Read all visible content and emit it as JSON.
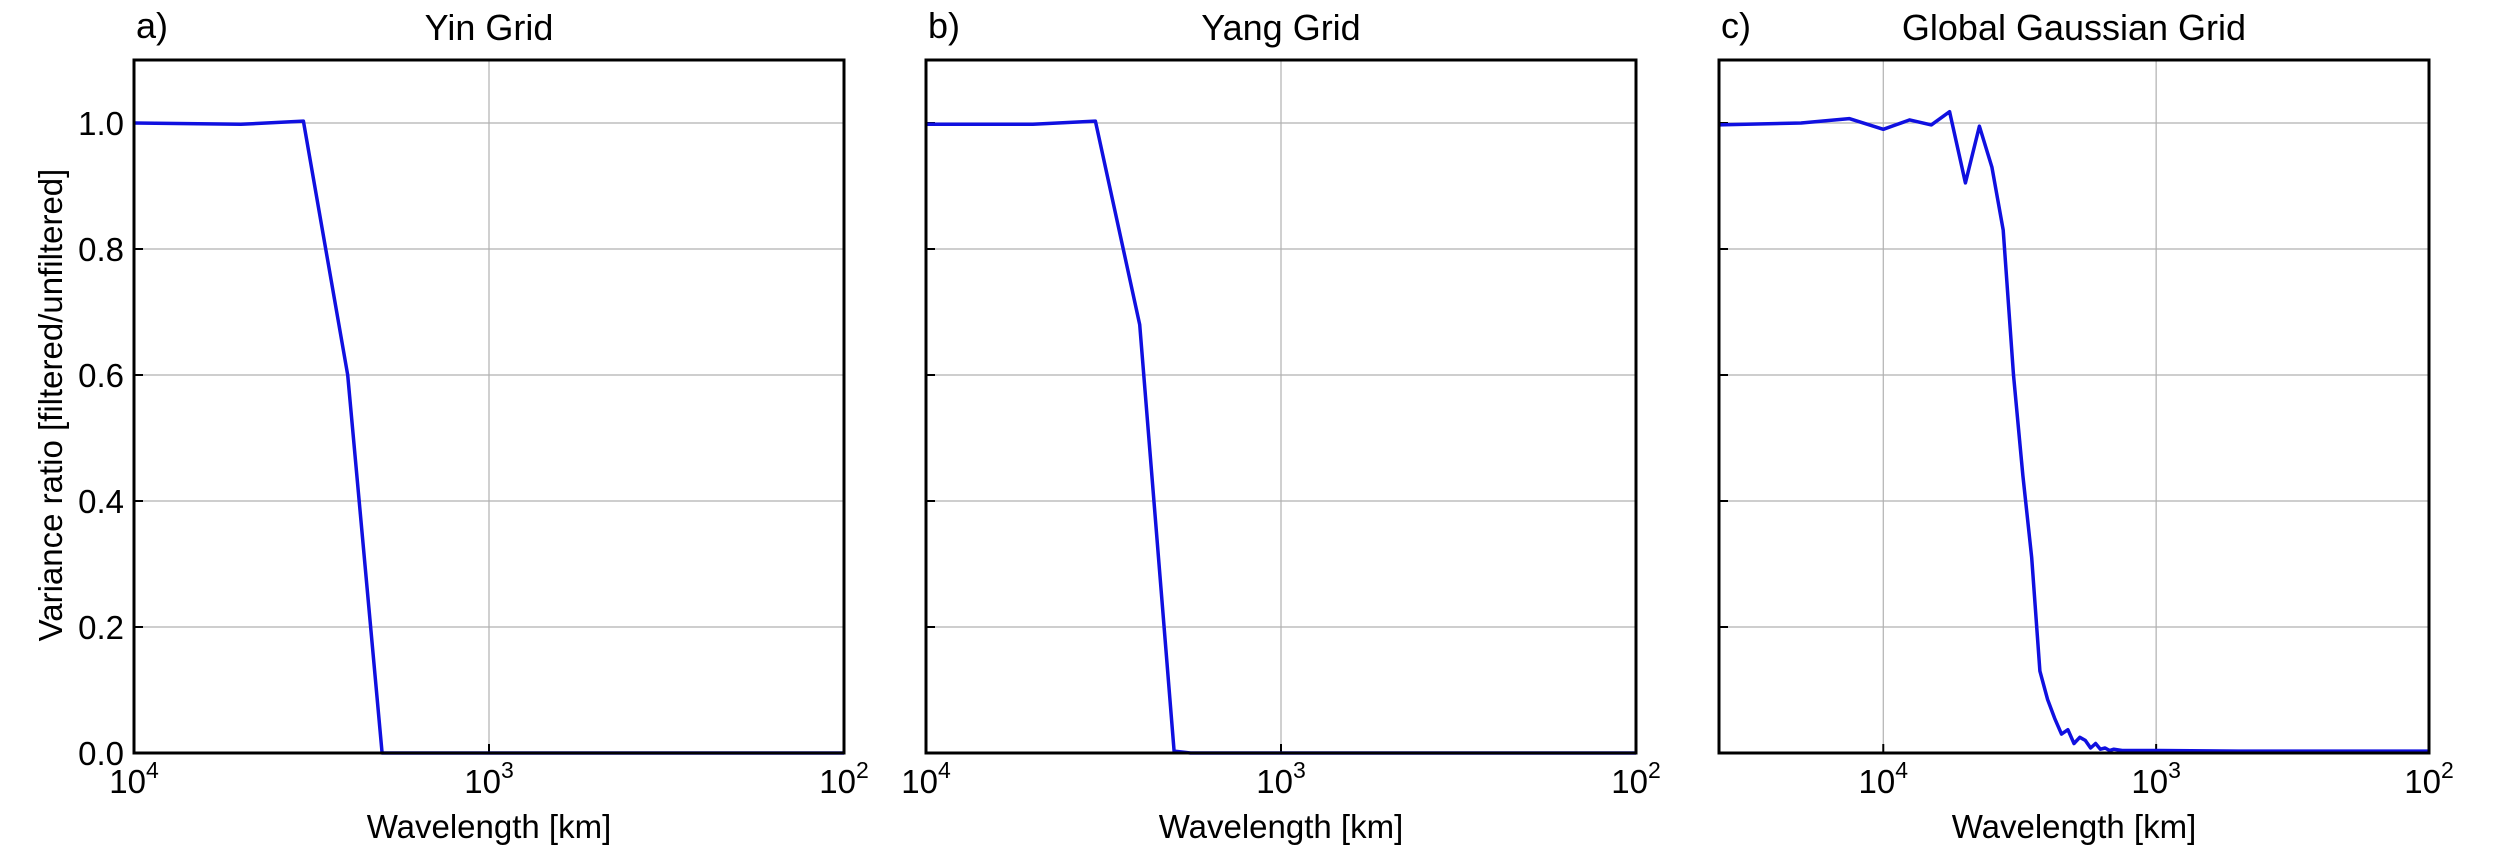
{
  "figure": {
    "ylabel": "Variance ratio [filtered/unfiltered]"
  },
  "chart_data": [
    {
      "type": "line",
      "panel_label": "a)",
      "title": "Yin Grid",
      "xlabel": "Wavelength [km]",
      "xscale": "log-reversed",
      "xlim": [
        10000,
        100
      ],
      "ylim": [
        0,
        1.1
      ],
      "xticks": [
        {
          "base": "10",
          "exp": "4"
        },
        {
          "base": "10",
          "exp": "3"
        },
        {
          "base": "10",
          "exp": "2"
        }
      ],
      "yticks": [
        "0.0",
        "0.2",
        "0.4",
        "0.6",
        "0.8",
        "1.0"
      ],
      "show_yticklabels": true,
      "grid": true,
      "line_color": "#1010e0",
      "series": [
        {
          "x": [
            10000,
            5000,
            3333,
            2500,
            2000,
            1667,
            100
          ],
          "y": [
            1.0,
            0.998,
            1.003,
            0.6,
            0.0,
            0.0,
            0.0
          ]
        }
      ]
    },
    {
      "type": "line",
      "panel_label": "b)",
      "title": "Yang Grid",
      "xlabel": "Wavelength [km]",
      "xscale": "log-reversed",
      "xlim": [
        10000,
        100
      ],
      "ylim": [
        0,
        1.1
      ],
      "xticks": [
        {
          "base": "10",
          "exp": "4"
        },
        {
          "base": "10",
          "exp": "3"
        },
        {
          "base": "10",
          "exp": "2"
        }
      ],
      "yticks": [
        "0.0",
        "0.2",
        "0.4",
        "0.6",
        "0.8",
        "1.0"
      ],
      "show_yticklabels": false,
      "grid": true,
      "line_color": "#1010e0",
      "series": [
        {
          "x": [
            10000,
            5000,
            3333,
            2500,
            2000,
            1800,
            100
          ],
          "y": [
            0.998,
            0.998,
            1.003,
            0.68,
            0.003,
            0.0,
            0.0
          ]
        }
      ]
    },
    {
      "type": "line",
      "panel_label": "c)",
      "title": "Global Gaussian Grid",
      "xlabel": "Wavelength [km]",
      "xscale": "log-reversed",
      "xlim": [
        40000,
        100
      ],
      "ylim": [
        0,
        1.1
      ],
      "xticks": [
        {
          "base": "10",
          "exp": "4"
        },
        {
          "base": "10",
          "exp": "3"
        },
        {
          "base": "10",
          "exp": "2"
        }
      ],
      "yticks": [
        "0.0",
        "0.2",
        "0.4",
        "0.6",
        "0.8",
        "1.0"
      ],
      "show_yticklabels": false,
      "grid": true,
      "line_color": "#1010e0",
      "series": [
        {
          "x": [
            40000,
            20000,
            13333,
            10000,
            8000,
            6667,
            5714,
            5000,
            4444,
            4000,
            3636,
            3333,
            3077,
            2857,
            2667,
            2500,
            2353,
            2222,
            2105,
            2000,
            1905,
            1818,
            1739,
            1667,
            1600,
            1538,
            1481,
            1429,
            1333,
            1250,
            1000,
            500,
            100
          ],
          "y": [
            0.997,
            1.0,
            1.007,
            0.99,
            1.005,
            0.997,
            1.018,
            0.905,
            0.995,
            0.93,
            0.83,
            0.6,
            0.44,
            0.31,
            0.13,
            0.085,
            0.055,
            0.03,
            0.037,
            0.015,
            0.025,
            0.02,
            0.008,
            0.015,
            0.006,
            0.008,
            0.004,
            0.006,
            0.004,
            0.004,
            0.004,
            0.003,
            0.003
          ]
        }
      ]
    }
  ]
}
